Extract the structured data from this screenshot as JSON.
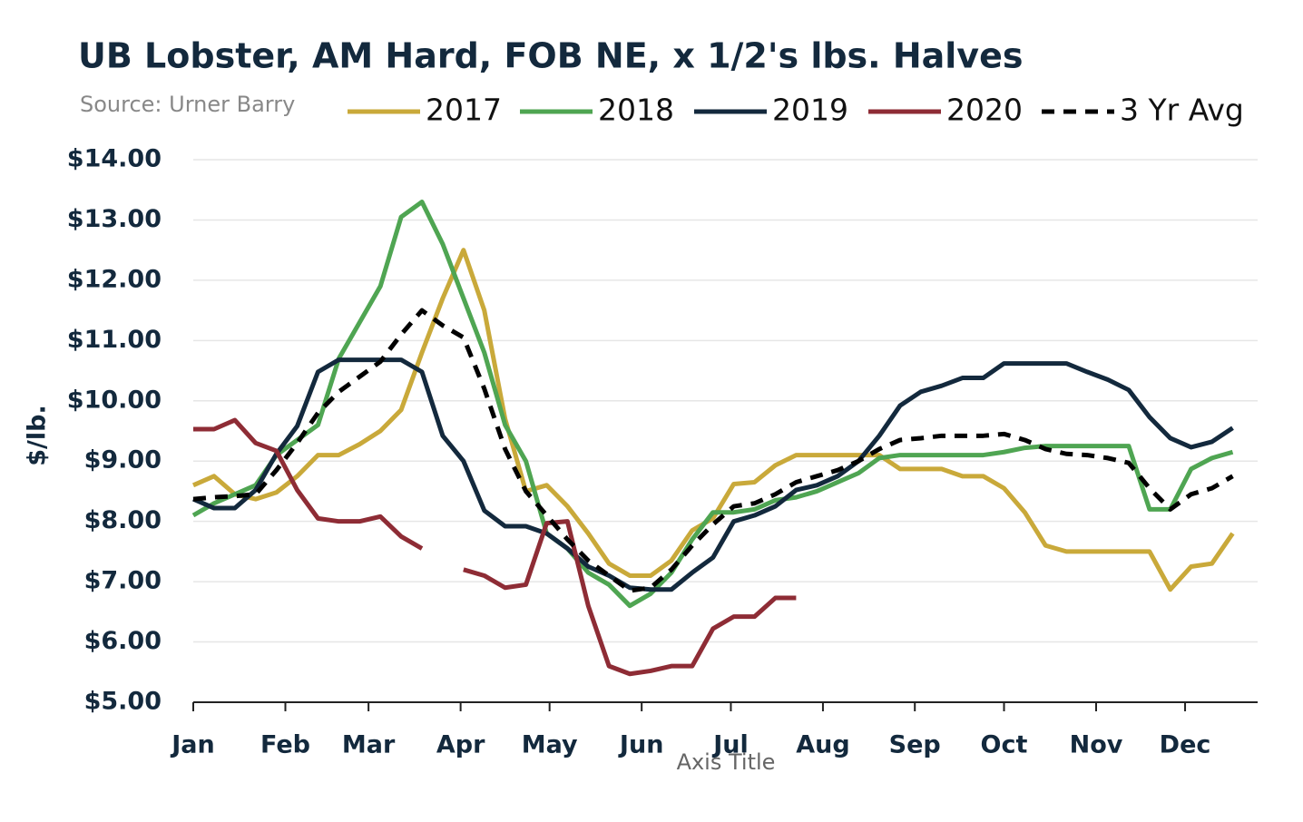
{
  "chart_data": {
    "type": "line",
    "title": "UB Lobster, AM Hard, FOB NE, x 1/2's lbs. Halves",
    "subtitle": "Source: Urner Barry",
    "x_axis_label": "Axis Title",
    "y_axis_label": "$/lb.",
    "x": [
      0,
      1,
      2,
      3,
      4,
      5,
      6,
      7,
      8,
      9,
      10,
      11,
      12,
      13,
      14,
      15,
      16,
      17,
      18,
      19,
      20,
      21,
      22,
      23,
      24,
      25,
      26,
      27,
      28,
      29,
      30,
      31,
      32,
      33,
      34,
      35,
      36,
      37,
      38,
      39,
      40,
      41,
      42,
      43,
      44,
      45,
      46,
      47,
      48,
      49,
      50
    ],
    "xlim": [
      0,
      51.2
    ],
    "xticks": [
      {
        "value": 0,
        "label": "Jan"
      },
      {
        "value": 4.43,
        "label": "Feb"
      },
      {
        "value": 8.43,
        "label": "Mar"
      },
      {
        "value": 12.86,
        "label": "Apr"
      },
      {
        "value": 17.14,
        "label": "May"
      },
      {
        "value": 21.57,
        "label": "Jun"
      },
      {
        "value": 25.86,
        "label": "Jul"
      },
      {
        "value": 30.29,
        "label": "Aug"
      },
      {
        "value": 34.71,
        "label": "Sep"
      },
      {
        "value": 39,
        "label": "Oct"
      },
      {
        "value": 43.43,
        "label": "Nov"
      },
      {
        "value": 47.71,
        "label": "Dec"
      }
    ],
    "ylim": [
      5,
      14
    ],
    "yticks": [
      {
        "value": 5,
        "label": "$5.00"
      },
      {
        "value": 6,
        "label": "$6.00"
      },
      {
        "value": 7,
        "label": "$7.00"
      },
      {
        "value": 8,
        "label": "$8.00"
      },
      {
        "value": 9,
        "label": "$9.00"
      },
      {
        "value": 10,
        "label": "$10.00"
      },
      {
        "value": 11,
        "label": "$11.00"
      },
      {
        "value": 12,
        "label": "$12.00"
      },
      {
        "value": 13,
        "label": "$13.00"
      },
      {
        "value": 14,
        "label": "$14.00"
      }
    ],
    "grid": true,
    "legend": "top",
    "series": [
      {
        "name": "2017",
        "color": "#c9a93a",
        "dash": false,
        "values": [
          8.6,
          8.75,
          8.45,
          8.37,
          8.48,
          8.75,
          9.1,
          9.1,
          9.28,
          9.5,
          9.85,
          10.8,
          11.7,
          12.5,
          11.5,
          9.7,
          8.5,
          8.6,
          8.25,
          7.8,
          7.3,
          7.1,
          7.1,
          7.35,
          7.85,
          8.05,
          8.62,
          8.65,
          8.93,
          9.1,
          9.1,
          9.1,
          9.1,
          9.1,
          8.87,
          8.87,
          8.87,
          8.75,
          8.75,
          8.55,
          8.15,
          7.6,
          7.5,
          7.5,
          7.5,
          7.5,
          7.5,
          6.87,
          7.25,
          7.3,
          7.8
        ]
      },
      {
        "name": "2018",
        "color": "#4fa552",
        "dash": false,
        "values": [
          8.1,
          8.3,
          8.45,
          8.6,
          9.1,
          9.35,
          9.6,
          10.7,
          11.3,
          11.9,
          13.05,
          13.3,
          12.6,
          11.7,
          10.8,
          9.6,
          9.0,
          7.8,
          7.55,
          7.15,
          6.95,
          6.6,
          6.8,
          7.15,
          7.7,
          8.15,
          8.15,
          8.2,
          8.35,
          8.4,
          8.5,
          8.65,
          8.8,
          9.05,
          9.1,
          9.1,
          9.1,
          9.1,
          9.1,
          9.15,
          9.22,
          9.25,
          9.25,
          9.25,
          9.25,
          9.25,
          8.2,
          8.2,
          8.87,
          9.05,
          9.15
        ]
      },
      {
        "name": "2019",
        "color": "#13293d",
        "dash": false,
        "values": [
          8.37,
          8.22,
          8.22,
          8.52,
          9.12,
          9.58,
          10.48,
          10.68,
          10.68,
          10.68,
          10.68,
          10.48,
          9.42,
          9.0,
          8.18,
          7.92,
          7.92,
          7.8,
          7.55,
          7.25,
          7.1,
          6.9,
          6.87,
          6.87,
          7.15,
          7.4,
          8.0,
          8.1,
          8.25,
          8.52,
          8.6,
          8.75,
          9.0,
          9.42,
          9.92,
          10.15,
          10.25,
          10.38,
          10.38,
          10.62,
          10.62,
          10.62,
          10.62,
          10.48,
          10.35,
          10.18,
          9.73,
          9.38,
          9.23,
          9.32,
          9.55
        ]
      },
      {
        "name": "2020",
        "color": "#8e2c35",
        "dash": false,
        "values": [
          9.53,
          9.53,
          9.68,
          9.3,
          9.17,
          8.52,
          8.05,
          8.0,
          8.0,
          8.08,
          7.75,
          7.55,
          null,
          7.2,
          7.1,
          6.9,
          6.95,
          7.97,
          8.0,
          6.6,
          5.6,
          5.47,
          5.52,
          5.6,
          5.6,
          6.22,
          6.42,
          6.42,
          6.73,
          6.73,
          null,
          null,
          null,
          null,
          null,
          null,
          null,
          null,
          null,
          null,
          null,
          null,
          null,
          null,
          null,
          null,
          null,
          null,
          null,
          null,
          null
        ]
      },
      {
        "name": "3 Yr Avg",
        "color": "#000000",
        "dash": true,
        "values": [
          8.37,
          8.4,
          8.42,
          8.45,
          8.85,
          9.3,
          9.8,
          10.15,
          10.4,
          10.65,
          11.1,
          11.5,
          11.25,
          11.05,
          10.2,
          9.2,
          8.5,
          8.1,
          7.7,
          7.35,
          7.1,
          6.85,
          6.9,
          7.2,
          7.6,
          7.95,
          8.25,
          8.3,
          8.45,
          8.65,
          8.75,
          8.85,
          9.0,
          9.2,
          9.35,
          9.38,
          9.42,
          9.42,
          9.42,
          9.45,
          9.35,
          9.2,
          9.12,
          9.1,
          9.05,
          8.97,
          8.55,
          8.2,
          8.45,
          8.55,
          8.75
        ]
      }
    ]
  }
}
